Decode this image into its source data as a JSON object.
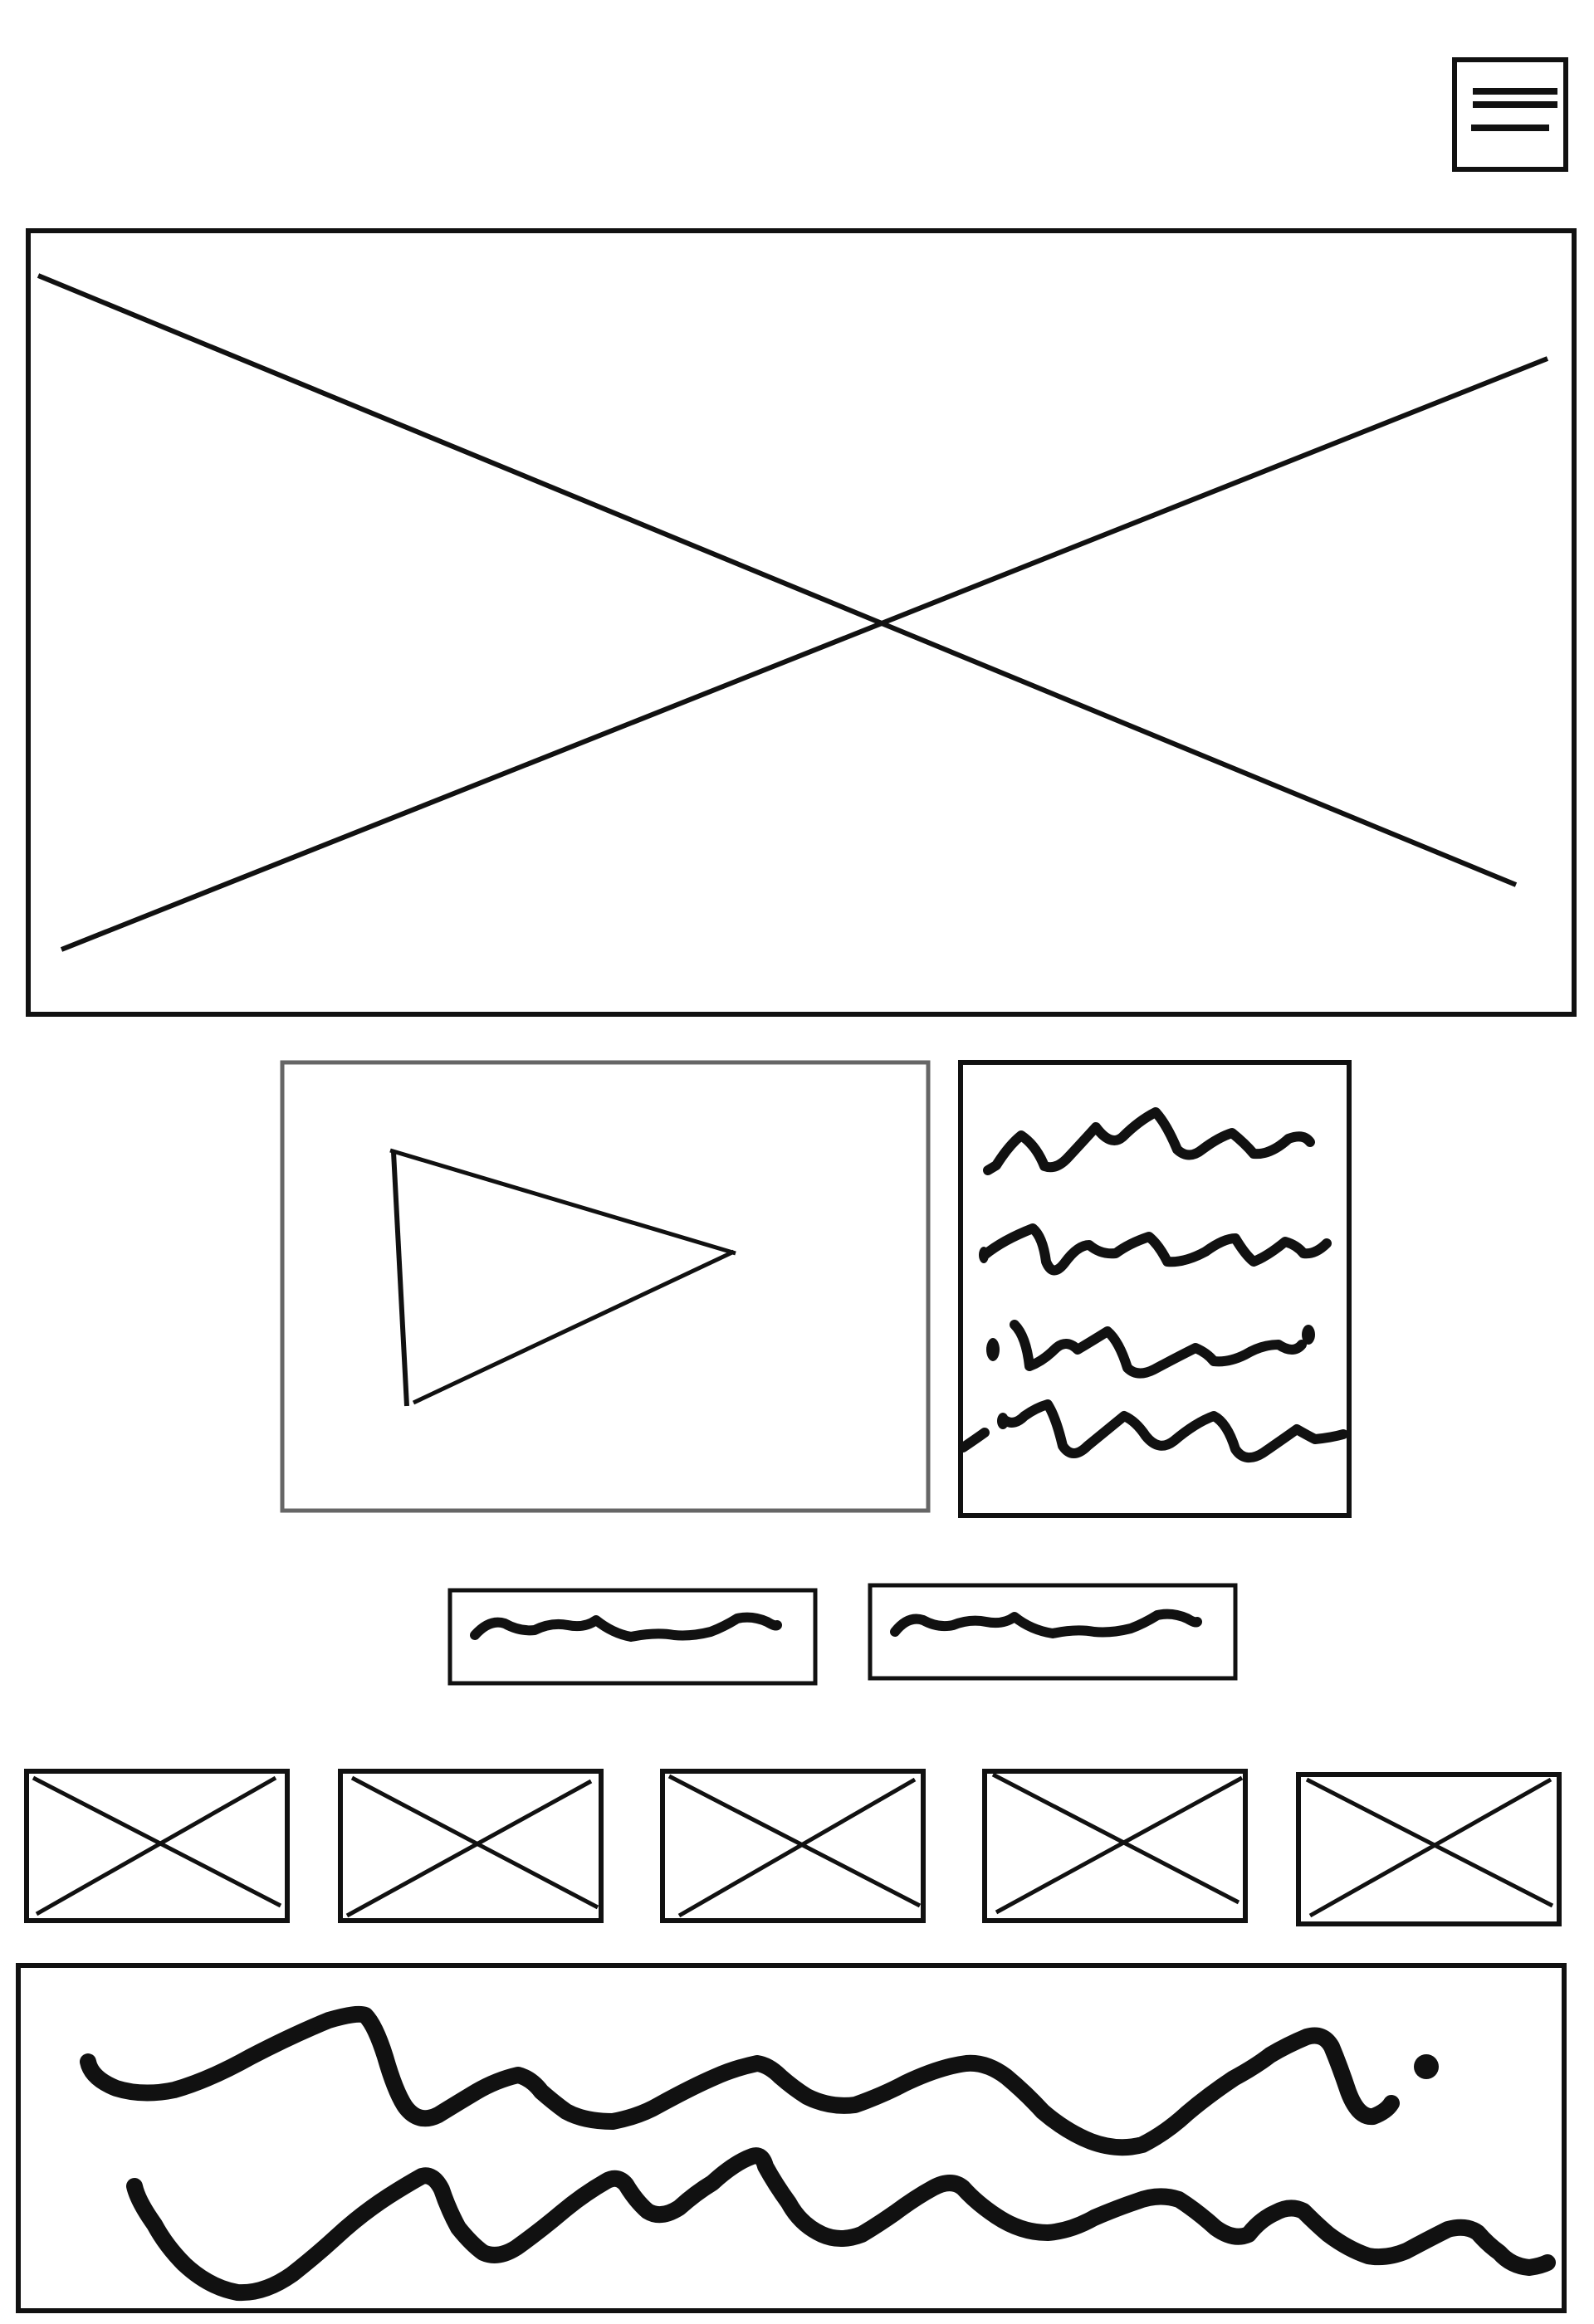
{
  "colors": {
    "ink": "#111111",
    "ink_gray": "#666666",
    "background": "#ffffff"
  },
  "header": {
    "menu_icon": "hamburger-icon"
  },
  "hero": {
    "placeholder_icon": "image-placeholder-icon"
  },
  "media": {
    "video_icon": "play-icon",
    "text_block": "scribble-text-lines"
  },
  "actions": {
    "buttons": [
      "scribble-label",
      "scribble-label"
    ]
  },
  "thumbnails": {
    "count": 5,
    "placeholder_icon": "image-placeholder-icon"
  },
  "footer": {
    "text_block": "scribble-paragraph"
  }
}
